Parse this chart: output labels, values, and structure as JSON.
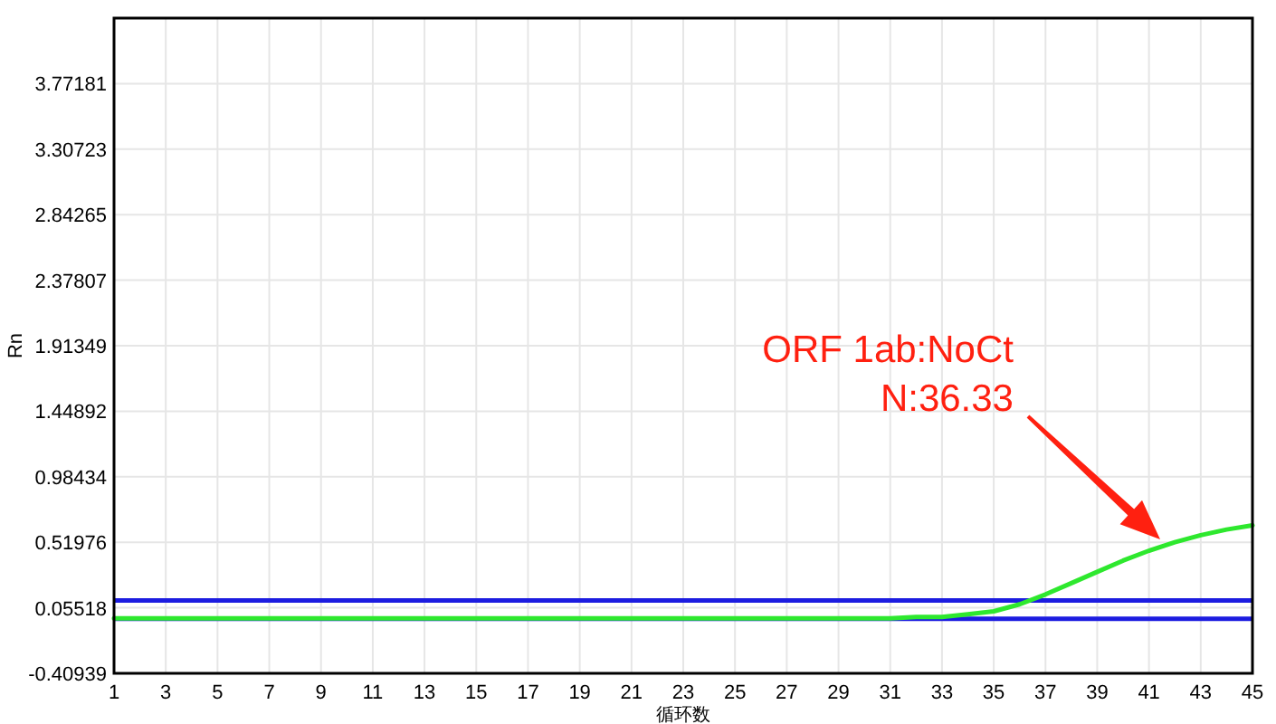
{
  "chart_data": {
    "type": "line",
    "xlabel": "循环数",
    "ylabel": "Rn",
    "x": [
      1,
      2,
      3,
      4,
      5,
      6,
      7,
      8,
      9,
      10,
      11,
      12,
      13,
      14,
      15,
      16,
      17,
      18,
      19,
      20,
      21,
      22,
      23,
      24,
      25,
      26,
      27,
      28,
      29,
      30,
      31,
      32,
      33,
      34,
      35,
      36,
      37,
      38,
      39,
      40,
      41,
      42,
      43,
      44,
      45
    ],
    "series": [
      {
        "color": "#2ee82e",
        "values": [
          -0.02,
          -0.02,
          -0.02,
          -0.02,
          -0.02,
          -0.02,
          -0.02,
          -0.02,
          -0.02,
          -0.02,
          -0.02,
          -0.02,
          -0.02,
          -0.02,
          -0.02,
          -0.02,
          -0.02,
          -0.02,
          -0.02,
          -0.02,
          -0.02,
          -0.02,
          -0.02,
          -0.02,
          -0.02,
          -0.02,
          -0.02,
          -0.02,
          -0.02,
          -0.02,
          -0.02,
          -0.01,
          -0.01,
          0.01,
          0.03,
          0.08,
          0.15,
          0.23,
          0.31,
          0.39,
          0.46,
          0.52,
          0.57,
          0.61,
          0.64
        ]
      }
    ],
    "xlim": [
      1,
      45
    ],
    "xticks": [
      1,
      3,
      5,
      7,
      9,
      11,
      13,
      15,
      17,
      19,
      21,
      23,
      25,
      27,
      29,
      31,
      33,
      35,
      37,
      39,
      41,
      43,
      45
    ],
    "ylim": [
      -0.40939,
      4.23639
    ],
    "yticks": [
      -0.40939,
      0.05518,
      0.51976,
      0.98434,
      1.44892,
      1.91349,
      2.37807,
      2.84265,
      3.30723,
      3.77181
    ],
    "grid": true,
    "ref_lines": [
      {
        "axis": "y",
        "value": 0.107,
        "color": "#1c1ce0"
      },
      {
        "axis": "y",
        "value": -0.022,
        "color": "#1c1ce0"
      }
    ],
    "annotations": [
      "ORF 1ab:NoCt\nN:36.33"
    ]
  }
}
